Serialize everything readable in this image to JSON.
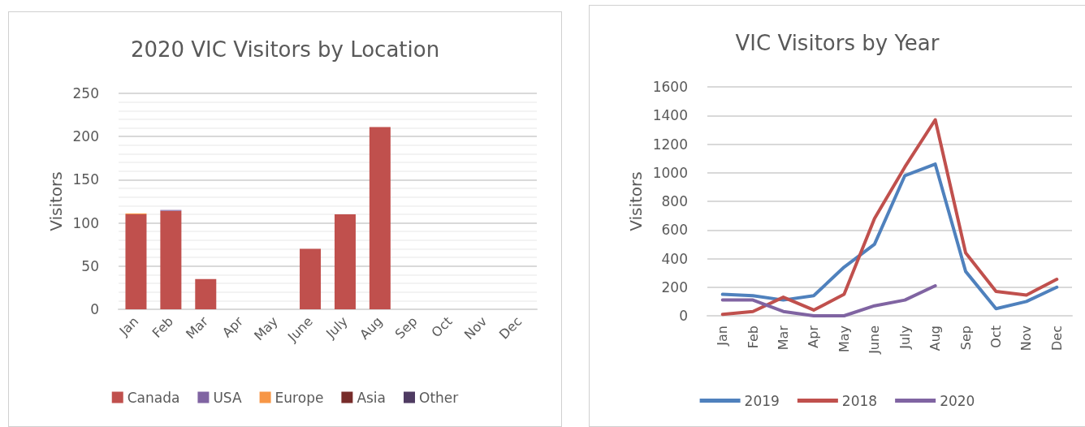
{
  "chart_data": [
    {
      "type": "bar",
      "title": "2020 VIC Visitors by Location",
      "ylabel": "Visitors",
      "stacked": true,
      "categories": [
        "Jan",
        "Feb",
        "Mar",
        "Apr",
        "May",
        "June",
        "July",
        "Aug",
        "Sep",
        "Oct",
        "Nov",
        "Dec"
      ],
      "series": [
        {
          "name": "Canada",
          "color": "#c0504d",
          "values": [
            110,
            114,
            35,
            0,
            0,
            70,
            110,
            211,
            0,
            0,
            0,
            0
          ]
        },
        {
          "name": "USA",
          "color": "#8064a2",
          "values": [
            0,
            1,
            0,
            0,
            0,
            0,
            0,
            0,
            0,
            0,
            0,
            0
          ]
        },
        {
          "name": "Europe",
          "color": "#f79646",
          "values": [
            1,
            0,
            0,
            0,
            0,
            0,
            0,
            0,
            0,
            0,
            0,
            0
          ]
        },
        {
          "name": "Asia",
          "color": "#772c2a",
          "values": [
            0,
            0,
            0,
            0,
            0,
            0,
            0,
            0,
            0,
            0,
            0,
            0
          ]
        },
        {
          "name": "Other",
          "color": "#4f3b62",
          "values": [
            0,
            0,
            0,
            0,
            0,
            0,
            0,
            0,
            0,
            0,
            0,
            0
          ]
        }
      ],
      "ylim": [
        0,
        250
      ],
      "yticks": [
        0,
        50,
        100,
        150,
        200,
        250
      ],
      "grid": "y",
      "legend": "bottom"
    },
    {
      "type": "line",
      "title": "VIC Visitors by Year",
      "ylabel": "Visitors",
      "categories": [
        "Jan",
        "Feb",
        "Mar",
        "Apr",
        "May",
        "June",
        "July",
        "Aug",
        "Sep",
        "Oct",
        "Nov",
        "Dec"
      ],
      "series": [
        {
          "name": "2019",
          "color": "#4f81bd",
          "values": [
            150,
            140,
            110,
            140,
            340,
            500,
            980,
            1060,
            310,
            50,
            100,
            200
          ]
        },
        {
          "name": "2018",
          "color": "#c0504d",
          "values": [
            10,
            30,
            130,
            40,
            150,
            680,
            1040,
            1370,
            440,
            170,
            145,
            255
          ]
        },
        {
          "name": "2020",
          "color": "#8064a2",
          "values": [
            110,
            110,
            30,
            0,
            0,
            70,
            110,
            210,
            null,
            null,
            null,
            null
          ]
        }
      ],
      "ylim": [
        0,
        1600
      ],
      "yticks": [
        0,
        200,
        400,
        600,
        800,
        1000,
        1200,
        1400,
        1600
      ],
      "grid": "y",
      "legend": "bottom",
      "marker": "none"
    }
  ]
}
